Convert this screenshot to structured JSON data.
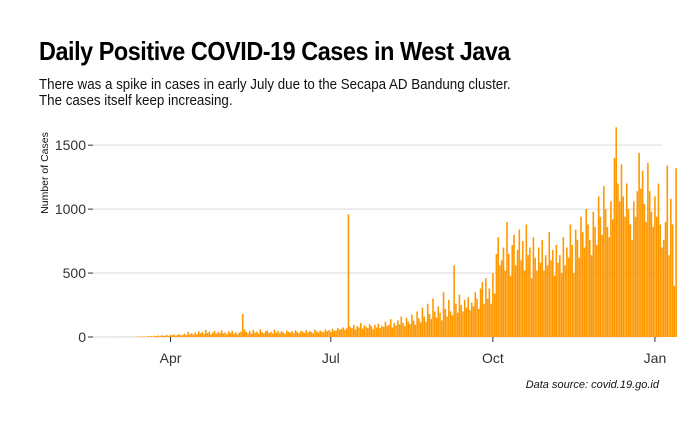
{
  "chart_data": {
    "type": "bar",
    "title": "Daily Positive COVID-19 Cases in West Java",
    "subtitle_lines": [
      "There was a spike in cases in early July due to the Secapa AD Bandung cluster.",
      "The cases itself keep increasing."
    ],
    "ylabel": "Number of Cases",
    "xlabel": "",
    "caption": "Data source: covid.19.go.id",
    "bar_color": "#FF9800",
    "grid": "horizontal",
    "ylim": [
      0,
      1650
    ],
    "xlim": [
      "2020-02-17",
      "2021-01-05"
    ],
    "y_ticks": [
      0,
      500,
      1000,
      1500
    ],
    "y_tick_labels": [
      "0",
      "500",
      "1000",
      "1500"
    ],
    "x_ticks": [
      "2020-04-01",
      "2020-07-01",
      "2020-10-01",
      "2021-01-01"
    ],
    "x_tick_labels": [
      "Apr",
      "Jul",
      "Oct",
      "Jan"
    ],
    "series": [
      {
        "start_date": "2020-03-02",
        "values": [
          1,
          0,
          2,
          0,
          1,
          0,
          0,
          1,
          0,
          2,
          1,
          3,
          2,
          4,
          3,
          5,
          2,
          6,
          4,
          8,
          5,
          10,
          7,
          12,
          6,
          14,
          9,
          11,
          15,
          8,
          17,
          13,
          20,
          10,
          16,
          22,
          12,
          18,
          25,
          14,
          40,
          20,
          30,
          18,
          35,
          22,
          45,
          28,
          38,
          25,
          55,
          30,
          42,
          20,
          35,
          48,
          25,
          40,
          30,
          52,
          28,
          36,
          22,
          44,
          32,
          50,
          26,
          38,
          20,
          34,
          42,
          180,
          60,
          40,
          30,
          48,
          25,
          55,
          35,
          42,
          28,
          60,
          38,
          30,
          45,
          52,
          32,
          40,
          28,
          58,
          35,
          48,
          30,
          44,
          36,
          26,
          50,
          40,
          34,
          46,
          30,
          54,
          38,
          28,
          48,
          42,
          32,
          55,
          36,
          45,
          40,
          30,
          58,
          44,
          35,
          50,
          42,
          38,
          60,
          45,
          55,
          40,
          65,
          48,
          52,
          70,
          58,
          62,
          75,
          55,
          68,
          960,
          80,
          70,
          95,
          60,
          85,
          75,
          110,
          65,
          90,
          80,
          70,
          100,
          85,
          60,
          95,
          75,
          105,
          70,
          88,
          78,
          120,
          85,
          95,
          140,
          75,
          110,
          90,
          130,
          100,
          160,
          110,
          85,
          150,
          120,
          100,
          175,
          130,
          95,
          200,
          145,
          115,
          230,
          160,
          120,
          260,
          180,
          140,
          300,
          200,
          150,
          240,
          190,
          130,
          350,
          220,
          160,
          290,
          200,
          170,
          560,
          260,
          190,
          330,
          250,
          200,
          290,
          230,
          310,
          210,
          270,
          240,
          350,
          300,
          220,
          380,
          430,
          260,
          460,
          300,
          380,
          260,
          500,
          340,
          650,
          780,
          560,
          600,
          700,
          520,
          900,
          650,
          480,
          720,
          800,
          560,
          680,
          840,
          600,
          750,
          520,
          880,
          640,
          700,
          460,
          780,
          620,
          520,
          700,
          580,
          760,
          520,
          640,
          560,
          820,
          600,
          680,
          480,
          720,
          580,
          640,
          500,
          780,
          560,
          700,
          620,
          880,
          720,
          500,
          840,
          760,
          620,
          940,
          820,
          700,
          1000,
          880,
          760,
          640,
          980,
          860,
          720,
          1100,
          940,
          800,
          1180,
          1000,
          860,
          780,
          1060,
          920,
          1400,
          1640,
          1200,
          1060,
          1350,
          1100,
          940,
          1200,
          1000,
          880,
          760,
          1060,
          940,
          1140,
          1440,
          1160,
          1300,
          1040,
          900,
          1360,
          1140,
          980,
          860,
          1100,
          940,
          1200,
          880,
          700,
          760,
          900,
          1340,
          640,
          1080,
          880,
          400,
          1320
        ]
      }
    ]
  }
}
